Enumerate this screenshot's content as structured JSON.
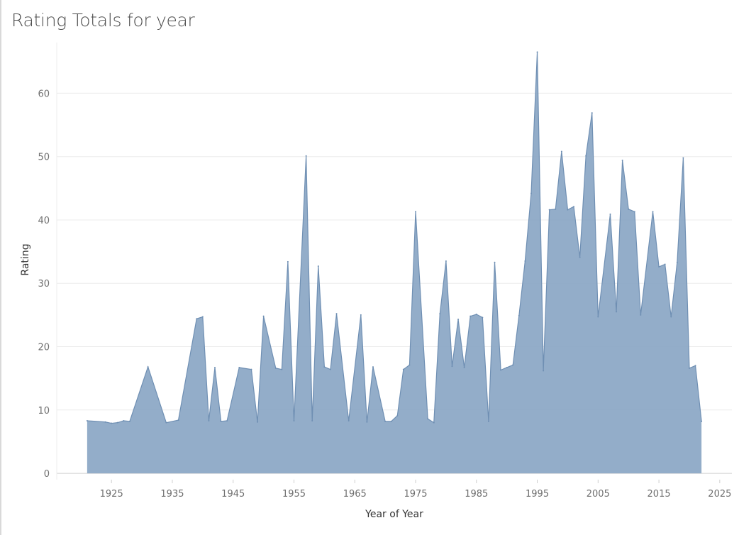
{
  "title": "Rating Totals for year",
  "chart_data": {
    "type": "area",
    "title": "Rating Totals for year",
    "xlabel": "Year of Year",
    "ylabel": "Rating",
    "xlim": [
      1916,
      2027
    ],
    "ylim": [
      -1,
      68
    ],
    "x_ticks": [
      1925,
      1935,
      1945,
      1955,
      1965,
      1975,
      1985,
      1995,
      2005,
      2015,
      2025
    ],
    "y_ticks": [
      0,
      10,
      20,
      30,
      40,
      50,
      60
    ],
    "grid": "horizontal",
    "colors": {
      "fill": "#8aa6c4",
      "line": "#6f8fb3",
      "grid": "#ececec",
      "zero": "#d0d0d0"
    },
    "x": [
      1921,
      1924,
      1925,
      1926,
      1927,
      1928,
      1931,
      1934,
      1936,
      1939,
      1940,
      1941,
      1942,
      1943,
      1944,
      1946,
      1948,
      1949,
      1950,
      1952,
      1953,
      1954,
      1955,
      1957,
      1958,
      1959,
      1960,
      1961,
      1962,
      1964,
      1966,
      1967,
      1968,
      1970,
      1971,
      1972,
      1973,
      1974,
      1975,
      1977,
      1978,
      1979,
      1980,
      1981,
      1982,
      1983,
      1984,
      1985,
      1986,
      1987,
      1988,
      1989,
      1990,
      1991,
      1992,
      1993,
      1994,
      1995,
      1996,
      1997,
      1998,
      1999,
      2000,
      2001,
      2002,
      2003,
      2004,
      2005,
      2007,
      2008,
      2009,
      2010,
      2011,
      2012,
      2014,
      2015,
      2016,
      2017,
      2018,
      2019,
      2020,
      2021,
      2022
    ],
    "values": [
      8.3,
      8.1,
      7.9,
      8,
      8.3,
      8.2,
      16.8,
      8,
      8.4,
      24.4,
      24.7,
      8.3,
      16.7,
      8.2,
      8.3,
      16.7,
      16.4,
      8.1,
      24.8,
      16.6,
      16.4,
      33.4,
      8.3,
      50.1,
      8.3,
      32.7,
      16.8,
      16.4,
      25.2,
      8.3,
      25,
      8.1,
      16.8,
      8.2,
      8.2,
      9.1,
      16.4,
      17.1,
      41.3,
      8.6,
      8,
      25.2,
      33.5,
      16.9,
      24.3,
      16.7,
      24.8,
      25.1,
      24.6,
      8.2,
      33.3,
      16.3,
      16.7,
      17.1,
      24.9,
      33.5,
      44.2,
      66.5,
      16.2,
      41.6,
      41.7,
      50.8,
      41.6,
      42.1,
      34.1,
      50.1,
      56.9,
      24.7,
      40.9,
      25.5,
      49.4,
      41.7,
      41.3,
      25,
      41.3,
      32.6,
      33,
      24.7,
      33.3,
      49.8,
      16.6,
      17,
      8.2
    ]
  }
}
